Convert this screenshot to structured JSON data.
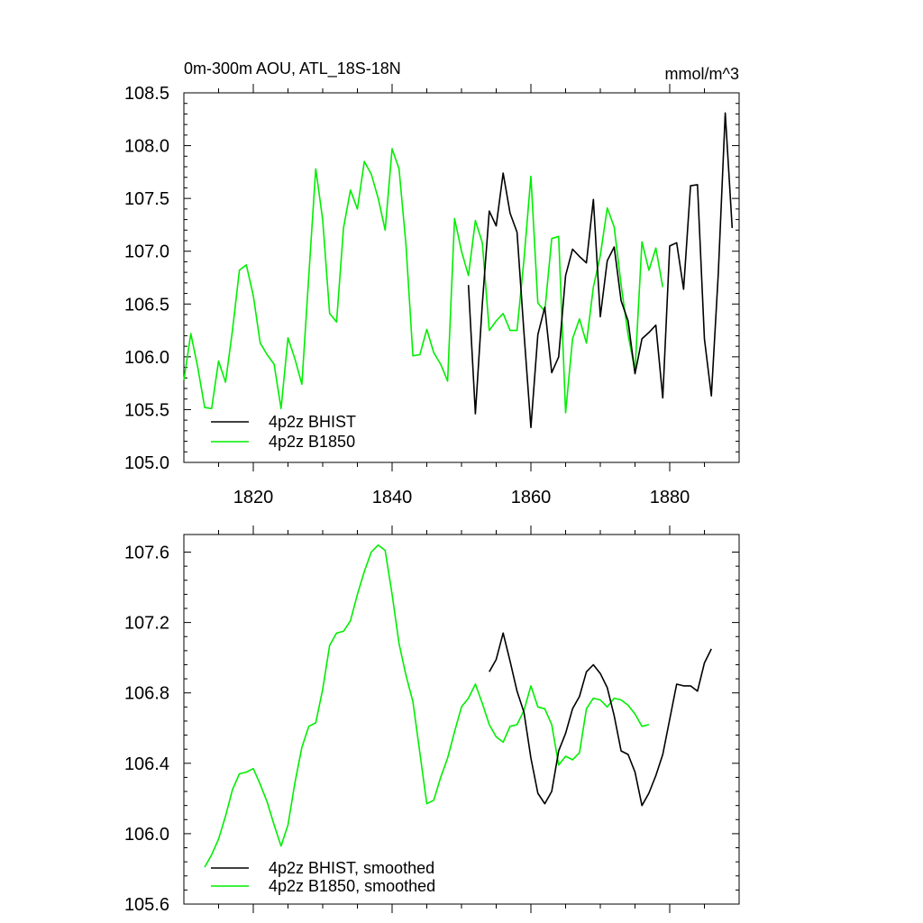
{
  "colors": {
    "bhist": "#000000",
    "b1850": "#00ee00",
    "axis": "#000000"
  },
  "chart_data": [
    {
      "type": "line",
      "title": "0m-300m AOU, ATL_18S-18N",
      "units": "mmol/m^3",
      "xlim": [
        1810,
        1890
      ],
      "ylim": [
        105.0,
        108.5
      ],
      "xticks": [
        1820,
        1840,
        1860,
        1880
      ],
      "xtick_labels": [
        "1820",
        "1840",
        "1860",
        "1880"
      ],
      "yticks": [
        105.0,
        105.5,
        106.0,
        106.5,
        107.0,
        107.5,
        108.0,
        108.5
      ],
      "ytick_labels": [
        "105.0",
        "105.5",
        "106.0",
        "106.5",
        "107.0",
        "107.5",
        "108.0",
        "108.5"
      ],
      "legend": "bottom-left",
      "series": [
        {
          "name": "4p2z BHIST",
          "color": "#000000",
          "x": [
            1851,
            1852,
            1853,
            1854,
            1855,
            1856,
            1857,
            1858,
            1859,
            1860,
            1861,
            1862,
            1863,
            1864,
            1865,
            1866,
            1867,
            1868,
            1869,
            1870,
            1871,
            1872,
            1873,
            1874,
            1875,
            1876,
            1877,
            1878,
            1879,
            1880,
            1881,
            1882,
            1883,
            1884,
            1885,
            1886,
            1887,
            1888,
            1889
          ],
          "y": [
            106.68,
            105.46,
            106.5,
            107.38,
            107.24,
            107.74,
            107.36,
            107.18,
            106.23,
            105.33,
            106.21,
            106.47,
            105.85,
            106.0,
            106.77,
            107.02,
            106.95,
            106.89,
            107.49,
            106.38,
            106.91,
            107.04,
            106.53,
            106.34,
            105.84,
            106.17,
            106.23,
            106.3,
            105.61,
            107.05,
            107.08,
            106.64,
            107.62,
            107.63,
            106.17,
            105.63,
            106.79,
            108.31,
            107.22
          ]
        },
        {
          "name": "4p2z B1850",
          "color": "#00ee00",
          "x": [
            1810,
            1811,
            1812,
            1813,
            1814,
            1815,
            1816,
            1817,
            1818,
            1819,
            1820,
            1821,
            1822,
            1823,
            1824,
            1825,
            1826,
            1827,
            1828,
            1829,
            1830,
            1831,
            1832,
            1833,
            1834,
            1835,
            1836,
            1837,
            1838,
            1839,
            1840,
            1841,
            1842,
            1843,
            1844,
            1845,
            1846,
            1847,
            1848,
            1849,
            1850,
            1851,
            1852,
            1853,
            1854,
            1855,
            1856,
            1857,
            1858,
            1859,
            1860,
            1861,
            1862,
            1863,
            1864,
            1865,
            1866,
            1867,
            1868,
            1869,
            1870,
            1871,
            1872,
            1873,
            1874,
            1875,
            1876,
            1877,
            1878,
            1879
          ],
          "y": [
            105.78,
            106.22,
            105.9,
            105.52,
            105.51,
            105.96,
            105.76,
            106.25,
            106.82,
            106.87,
            106.58,
            106.13,
            106.02,
            105.93,
            105.51,
            106.18,
            105.98,
            105.74,
            106.77,
            107.78,
            107.3,
            106.41,
            106.33,
            107.22,
            107.58,
            107.4,
            107.85,
            107.73,
            107.5,
            107.2,
            107.97,
            107.78,
            107.06,
            106.01,
            106.02,
            106.26,
            106.04,
            105.93,
            105.77,
            107.31,
            107.0,
            106.77,
            107.29,
            107.08,
            106.25,
            106.34,
            106.41,
            106.25,
            106.25,
            106.92,
            107.71,
            106.51,
            106.43,
            107.12,
            107.14,
            105.47,
            106.17,
            106.36,
            106.13,
            106.66,
            106.96,
            107.41,
            107.23,
            106.68,
            106.21,
            105.87,
            107.09,
            106.82,
            107.03,
            106.66
          ]
        }
      ]
    },
    {
      "type": "line",
      "title": "",
      "xlim": [
        1810,
        1890
      ],
      "ylim": [
        105.6,
        107.7
      ],
      "xticks": [
        1820,
        1840,
        1860,
        1880
      ],
      "yticks": [
        105.6,
        106.0,
        106.4,
        106.8,
        107.2,
        107.6
      ],
      "ytick_labels": [
        "105.6",
        "106.0",
        "106.4",
        "106.8",
        "107.2",
        "107.6"
      ],
      "legend": "bottom-left",
      "series": [
        {
          "name": "4p2z BHIST, smoothed",
          "color": "#000000",
          "x": [
            1854,
            1855,
            1856,
            1857,
            1858,
            1859,
            1860,
            1861,
            1862,
            1863,
            1864,
            1865,
            1866,
            1867,
            1868,
            1869,
            1870,
            1871,
            1872,
            1873,
            1874,
            1875,
            1876,
            1877,
            1878,
            1879,
            1880,
            1881,
            1882,
            1883,
            1884,
            1885,
            1886
          ],
          "y": [
            106.92,
            106.99,
            107.14,
            106.98,
            106.81,
            106.69,
            106.43,
            106.23,
            106.17,
            106.24,
            106.47,
            106.57,
            106.71,
            106.78,
            106.92,
            106.96,
            106.91,
            106.83,
            106.67,
            106.47,
            106.45,
            106.35,
            106.16,
            106.23,
            106.33,
            106.45,
            106.65,
            106.85,
            106.84,
            106.84,
            106.81,
            106.97,
            107.05
          ]
        },
        {
          "name": "4p2z B1850, smoothed",
          "color": "#00ee00",
          "x": [
            1813,
            1814,
            1815,
            1816,
            1817,
            1818,
            1819,
            1820,
            1821,
            1822,
            1823,
            1824,
            1825,
            1826,
            1827,
            1828,
            1829,
            1830,
            1831,
            1832,
            1833,
            1834,
            1835,
            1836,
            1837,
            1838,
            1839,
            1840,
            1841,
            1842,
            1843,
            1844,
            1845,
            1846,
            1847,
            1848,
            1849,
            1850,
            1851,
            1852,
            1853,
            1854,
            1855,
            1856,
            1857,
            1858,
            1859,
            1860,
            1861,
            1862,
            1863,
            1864,
            1865,
            1866,
            1867,
            1868,
            1869,
            1870,
            1871,
            1872,
            1873,
            1874,
            1875,
            1876,
            1877
          ],
          "y": [
            105.81,
            105.88,
            105.97,
            106.1,
            106.25,
            106.34,
            106.35,
            106.37,
            106.28,
            106.18,
            106.05,
            105.93,
            106.05,
            106.29,
            106.49,
            106.61,
            106.63,
            106.82,
            107.07,
            107.14,
            107.15,
            107.21,
            107.36,
            107.49,
            107.6,
            107.64,
            107.61,
            107.36,
            107.08,
            106.9,
            106.75,
            106.46,
            106.17,
            106.19,
            106.32,
            106.43,
            106.58,
            106.72,
            106.77,
            106.85,
            106.74,
            106.62,
            106.55,
            106.52,
            106.61,
            106.62,
            106.7,
            106.84,
            106.72,
            106.71,
            106.62,
            106.39,
            106.44,
            106.42,
            106.46,
            106.71,
            106.77,
            106.76,
            106.72,
            106.77,
            106.76,
            106.73,
            106.68,
            106.61,
            106.62
          ]
        }
      ]
    }
  ]
}
